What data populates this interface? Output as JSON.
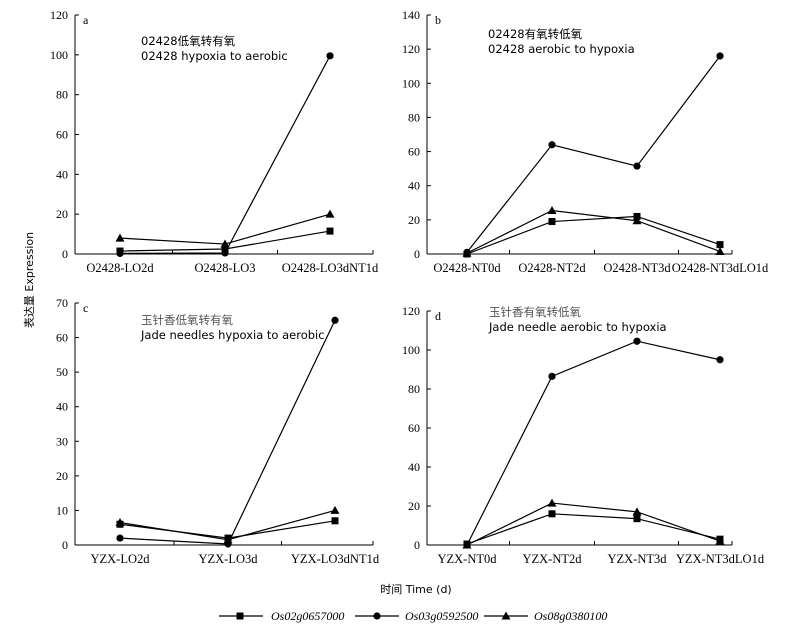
{
  "ylabel": "表达量 Expression",
  "xlabel": "时间 Time (d)",
  "legend": [
    {
      "name": "Os02g0657000",
      "marker": "square"
    },
    {
      "name": "Os03g0592500",
      "marker": "circle"
    },
    {
      "name": "Os08g0380100",
      "marker": "triangle"
    }
  ],
  "chart_data": [
    {
      "type": "line",
      "letter": "a",
      "annotation": [
        "02428低氧转有氧",
        "02428 hypoxia to aerobic"
      ],
      "categories": [
        "O2428-LO2d",
        "O2428-LO3",
        "O2428-LO3dNT1d"
      ],
      "ylim": [
        0,
        120
      ],
      "yticks": [
        0,
        20,
        40,
        60,
        80,
        100,
        120
      ],
      "series": [
        {
          "name": "Os02g0657000",
          "values": [
            1.5,
            2.5,
            11.5
          ]
        },
        {
          "name": "Os03g0592500",
          "values": [
            0.3,
            0.5,
            99.5
          ]
        },
        {
          "name": "Os08g0380100",
          "values": [
            8,
            5,
            20
          ]
        }
      ]
    },
    {
      "type": "line",
      "letter": "b",
      "annotation": [
        "02428有氧转低氧",
        "02428 aerobic to hypoxia"
      ],
      "categories": [
        "O2428-NT0d",
        "O2428-NT2d",
        "O2428-NT3d",
        "O2428-NT3dLO1d"
      ],
      "ylim": [
        0,
        140
      ],
      "yticks": [
        0,
        20,
        40,
        60,
        80,
        100,
        120,
        140
      ],
      "series": [
        {
          "name": "Os02g0657000",
          "values": [
            0,
            19,
            22,
            5.5
          ]
        },
        {
          "name": "Os03g0592500",
          "values": [
            1,
            64,
            51.5,
            116
          ]
        },
        {
          "name": "Os08g0380100",
          "values": [
            0.5,
            25.5,
            19.5,
            1.5
          ]
        }
      ]
    },
    {
      "type": "line",
      "letter": "c",
      "annotation": [
        "玉针香低氧转有氧",
        "Jade needles hypoxia to aerobic"
      ],
      "categories": [
        "YZX-LO2d",
        "YZX-LO3d",
        "YZX-LO3dNT1d"
      ],
      "ylim": [
        0,
        70
      ],
      "yticks": [
        0,
        10,
        20,
        30,
        40,
        50,
        60,
        70
      ],
      "series": [
        {
          "name": "Os02g0657000",
          "values": [
            6,
            2,
            7
          ]
        },
        {
          "name": "Os03g0592500",
          "values": [
            2,
            0.3,
            65
          ]
        },
        {
          "name": "Os08g0380100",
          "values": [
            6.5,
            1.5,
            10
          ]
        }
      ]
    },
    {
      "type": "line",
      "letter": "d",
      "annotation": [
        "玉针香有氧转低氧",
        "Jade needle aerobic to hypoxia"
      ],
      "categories": [
        "YZX-NT0d",
        "YZX-NT2d",
        "YZX-NT3d",
        "YZX-NT3dLO1d"
      ],
      "ylim": [
        0,
        120
      ],
      "yticks": [
        0,
        20,
        40,
        60,
        80,
        100,
        120
      ],
      "series": [
        {
          "name": "Os02g0657000",
          "values": [
            0.5,
            16,
            13.5,
            3
          ]
        },
        {
          "name": "Os03g0592500",
          "values": [
            0,
            86.5,
            104.5,
            95
          ]
        },
        {
          "name": "Os08g0380100",
          "values": [
            0,
            21.5,
            17,
            2
          ]
        }
      ]
    }
  ]
}
